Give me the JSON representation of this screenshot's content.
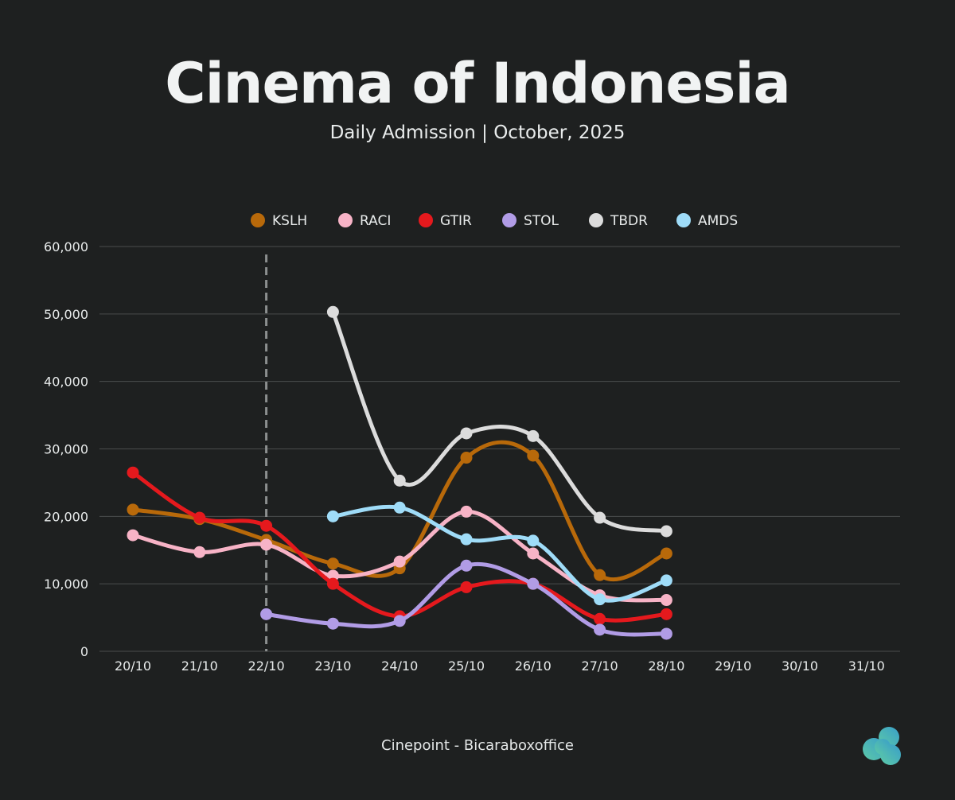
{
  "header": {
    "title": "Cinema of Indonesia",
    "subtitle": "Daily Admission | October, 2025"
  },
  "footer": {
    "source": "Cinepoint - Bicaraboxoffice"
  },
  "colors": {
    "background": "#1e2020",
    "grid": "#4a4d4d",
    "axis_text": "#e8ebeb",
    "marker_line": "#8c8f8f"
  },
  "chart_data": {
    "type": "line",
    "x": [
      "20/10",
      "21/10",
      "22/10",
      "23/10",
      "24/10",
      "25/10",
      "26/10",
      "27/10",
      "28/10",
      "29/10",
      "30/10",
      "31/10"
    ],
    "ylim": [
      0,
      60000
    ],
    "yticks": [
      0,
      10000,
      20000,
      30000,
      40000,
      50000,
      60000
    ],
    "ytick_labels": [
      "0",
      "10,000",
      "20,000",
      "30,000",
      "40,000",
      "50,000",
      "60,000"
    ],
    "grid": true,
    "legend_position": "top-center",
    "vertical_marker": "22/10",
    "series": [
      {
        "name": "KSLH",
        "color": "#b8690a",
        "values": [
          21000,
          19600,
          16500,
          13000,
          12300,
          28700,
          29000,
          11300,
          14500,
          null,
          null,
          null
        ]
      },
      {
        "name": "RACI",
        "color": "#f7b3c6",
        "values": [
          17200,
          14700,
          15800,
          11200,
          13300,
          20700,
          14500,
          8300,
          7600,
          null,
          null,
          null
        ]
      },
      {
        "name": "GTIR",
        "color": "#e5191d",
        "values": [
          26500,
          19800,
          18600,
          10000,
          5200,
          9500,
          10000,
          4800,
          5500,
          null,
          null,
          null
        ]
      },
      {
        "name": "STOL",
        "color": "#b19ce6",
        "values": [
          null,
          null,
          5500,
          4100,
          4500,
          12700,
          10000,
          3200,
          2600,
          null,
          null,
          null
        ]
      },
      {
        "name": "TBDR",
        "color": "#dcdcdc",
        "values": [
          null,
          null,
          null,
          50300,
          25300,
          32300,
          31900,
          19800,
          17800,
          null,
          null,
          null
        ]
      },
      {
        "name": "AMDS",
        "color": "#9fdcf8",
        "values": [
          null,
          null,
          null,
          20000,
          21300,
          16600,
          16400,
          7700,
          10500,
          null,
          null,
          null
        ]
      }
    ]
  }
}
